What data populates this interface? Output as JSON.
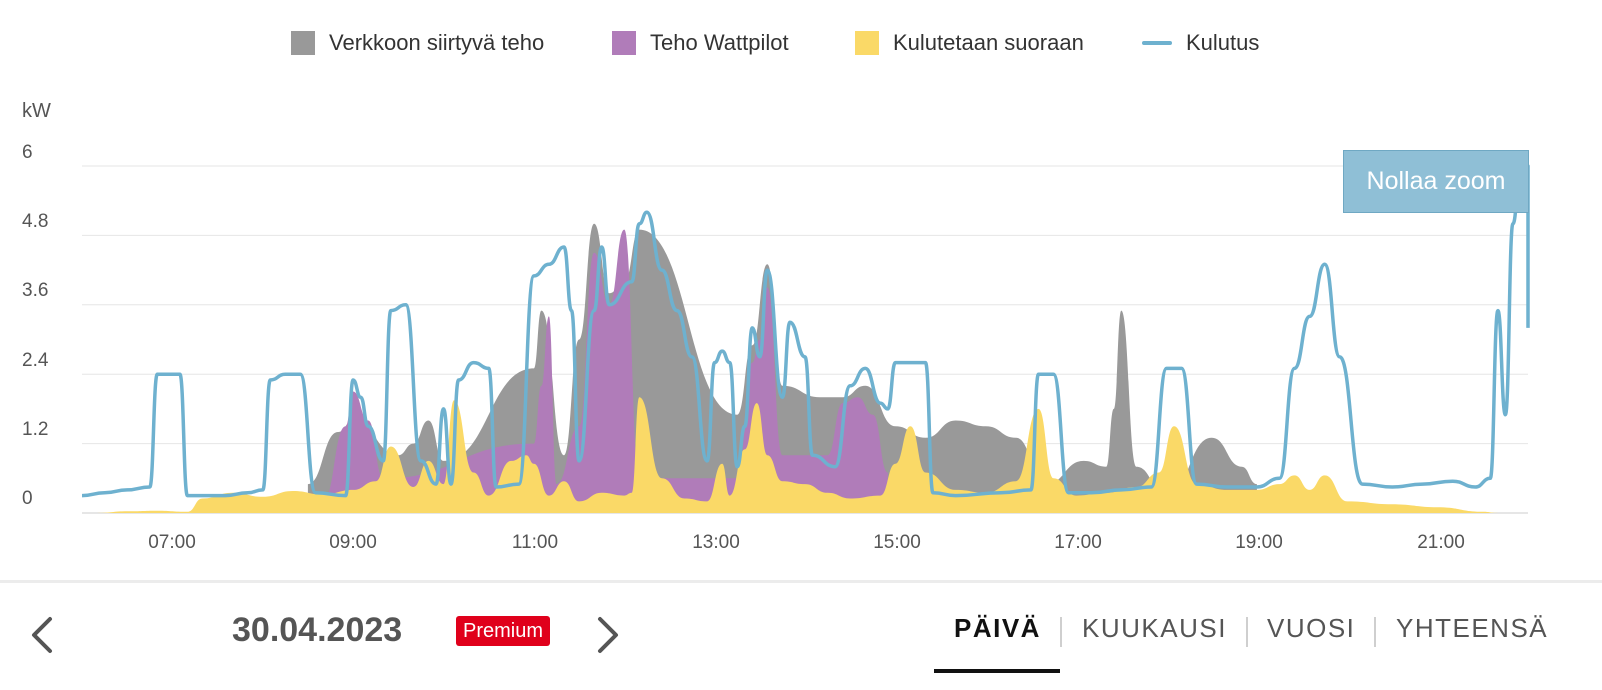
{
  "legend": [
    {
      "label": "Verkkoon siirtyvä teho",
      "color": "#999999",
      "kind": "area"
    },
    {
      "label": "Teho Wattpilot",
      "color": "#b07cb9",
      "kind": "area"
    },
    {
      "label": "Kulutetaan suoraan",
      "color": "#fad967",
      "kind": "area"
    },
    {
      "label": "Kulutus",
      "color": "#6eb1cf",
      "kind": "line"
    }
  ],
  "reset_zoom_label": "Nollaa zoom",
  "date": "30.04.2023",
  "premium_badge": "Premium",
  "tabs": [
    "PÄIVÄ",
    "KUUKAUSI",
    "VUOSI",
    "YHTEENSÄ"
  ],
  "active_tab": "PÄIVÄ",
  "icons": {
    "prev": "chevron-left-icon",
    "next": "chevron-right-icon"
  },
  "chart_data": {
    "type": "area",
    "ylabel": "kW",
    "ylim": [
      0,
      6
    ],
    "yticks": [
      "0",
      "1.2",
      "2.4",
      "3.6",
      "4.8",
      "6"
    ],
    "xlim": [
      "06:00",
      "22:00"
    ],
    "xticks": [
      "07:00",
      "09:00",
      "11:00",
      "13:00",
      "15:00",
      "17:00",
      "19:00",
      "21:00"
    ],
    "grid": true,
    "legend_position": "top",
    "series": [
      {
        "name": "Kulutetaan suoraan",
        "color": "#fad967",
        "points": [
          [
            "06:10",
            0
          ],
          [
            "06:30",
            0.03
          ],
          [
            "06:50",
            0.04
          ],
          [
            "07:10",
            0.02
          ],
          [
            "07:20",
            0.25
          ],
          [
            "07:40",
            0.35
          ],
          [
            "08:00",
            0.28
          ],
          [
            "08:20",
            0.38
          ],
          [
            "08:40",
            0.32
          ],
          [
            "09:00",
            0.4
          ],
          [
            "09:15",
            0.55
          ],
          [
            "09:25",
            1.15
          ],
          [
            "09:40",
            0.45
          ],
          [
            "09:50",
            0.9
          ],
          [
            "10:00",
            0.5
          ],
          [
            "10:07",
            1.95
          ],
          [
            "10:20",
            0.7
          ],
          [
            "10:30",
            0.3
          ],
          [
            "10:45",
            0.9
          ],
          [
            "10:55",
            1.0
          ],
          [
            "11:00",
            0.85
          ],
          [
            "11:10",
            0.3
          ],
          [
            "11:20",
            0.55
          ],
          [
            "11:30",
            0.2
          ],
          [
            "11:45",
            0.35
          ],
          [
            "12:00",
            0.3
          ],
          [
            "12:05",
            0.35
          ],
          [
            "12:10",
            2.0
          ],
          [
            "12:25",
            0.6
          ],
          [
            "12:40",
            0.25
          ],
          [
            "12:55",
            0.2
          ],
          [
            "13:05",
            0.85
          ],
          [
            "13:10",
            0.3
          ],
          [
            "13:20",
            1.1
          ],
          [
            "13:28",
            1.9
          ],
          [
            "13:35",
            1.0
          ],
          [
            "13:45",
            0.55
          ],
          [
            "14:00",
            0.5
          ],
          [
            "14:15",
            0.35
          ],
          [
            "14:30",
            0.25
          ],
          [
            "14:50",
            0.3
          ],
          [
            "15:00",
            0.85
          ],
          [
            "15:10",
            1.5
          ],
          [
            "15:20",
            0.7
          ],
          [
            "15:40",
            0.4
          ],
          [
            "16:00",
            0.35
          ],
          [
            "16:20",
            0.55
          ],
          [
            "16:35",
            1.8
          ],
          [
            "16:45",
            0.6
          ],
          [
            "17:00",
            0.3
          ],
          [
            "17:20",
            0.35
          ],
          [
            "17:40",
            0.45
          ],
          [
            "17:55",
            0.7
          ],
          [
            "18:05",
            1.5
          ],
          [
            "18:20",
            0.5
          ],
          [
            "18:40",
            0.4
          ],
          [
            "19:00",
            0.4
          ],
          [
            "19:15",
            0.5
          ],
          [
            "19:25",
            0.65
          ],
          [
            "19:35",
            0.4
          ],
          [
            "19:45",
            0.65
          ],
          [
            "20:00",
            0.2
          ],
          [
            "20:30",
            0.15
          ],
          [
            "21:00",
            0.1
          ],
          [
            "21:30",
            0.02
          ],
          [
            "21:40",
            0
          ]
        ]
      },
      {
        "name": "Teho Wattpilot",
        "color": "#b07cb9",
        "points": [
          [
            "08:40",
            0.2
          ],
          [
            "08:55",
            1.5
          ],
          [
            "09:00",
            2.1
          ],
          [
            "09:10",
            1.6
          ],
          [
            "09:20",
            0.6
          ],
          [
            "11:00",
            1.2
          ],
          [
            "11:05",
            2.2
          ],
          [
            "11:10",
            3.4
          ],
          [
            "11:15",
            0.5
          ],
          [
            "11:30",
            1.5
          ],
          [
            "11:40",
            4.5
          ],
          [
            "11:50",
            3.6
          ],
          [
            "12:00",
            4.9
          ],
          [
            "12:10",
            0.6
          ],
          [
            "13:15",
            0.6
          ],
          [
            "13:25",
            2.6
          ],
          [
            "13:30",
            3.0
          ],
          [
            "13:35",
            3.9
          ],
          [
            "13:45",
            1.0
          ],
          [
            "14:15",
            1.0
          ],
          [
            "14:25",
            1.9
          ],
          [
            "14:35",
            2.0
          ],
          [
            "14:45",
            1.7
          ],
          [
            "14:55",
            0.7
          ]
        ]
      },
      {
        "name": "Verkkoon siirtyvä teho",
        "color": "#999999",
        "points": [
          [
            "08:30",
            0.5
          ],
          [
            "08:50",
            1.4
          ],
          [
            "09:00",
            1.6
          ],
          [
            "09:30",
            1.0
          ],
          [
            "09:40",
            1.2
          ],
          [
            "09:50",
            1.6
          ],
          [
            "10:00",
            0.9
          ],
          [
            "11:00",
            2.5
          ],
          [
            "11:05",
            3.5
          ],
          [
            "11:20",
            1.0
          ],
          [
            "11:30",
            3.0
          ],
          [
            "11:40",
            5.0
          ],
          [
            "11:50",
            3.8
          ],
          [
            "12:00",
            4.0
          ],
          [
            "12:10",
            4.9
          ],
          [
            "13:15",
            1.7
          ],
          [
            "13:25",
            2.9
          ],
          [
            "13:35",
            4.3
          ],
          [
            "13:45",
            2.2
          ],
          [
            "14:10",
            2.0
          ],
          [
            "14:25",
            2.0
          ],
          [
            "14:40",
            2.2
          ],
          [
            "15:00",
            1.5
          ],
          [
            "15:20",
            1.3
          ],
          [
            "15:40",
            1.6
          ],
          [
            "16:00",
            1.5
          ],
          [
            "16:20",
            1.3
          ],
          [
            "16:40",
            0.5
          ],
          [
            "17:05",
            0.9
          ],
          [
            "17:20",
            0.8
          ],
          [
            "17:25",
            1.8
          ],
          [
            "17:30",
            3.5
          ],
          [
            "17:40",
            0.8
          ],
          [
            "18:00",
            0.3
          ],
          [
            "18:30",
            1.3
          ],
          [
            "18:50",
            0.8
          ],
          [
            "19:00",
            0.5
          ]
        ]
      },
      {
        "name": "Kulutus",
        "color": "#6eb1cf",
        "points": [
          [
            "06:00",
            0.3
          ],
          [
            "06:15",
            0.35
          ],
          [
            "06:30",
            0.4
          ],
          [
            "06:45",
            0.45
          ],
          [
            "06:50",
            2.4
          ],
          [
            "07:05",
            2.4
          ],
          [
            "07:10",
            0.3
          ],
          [
            "07:35",
            0.3
          ],
          [
            "07:50",
            0.35
          ],
          [
            "08:00",
            0.4
          ],
          [
            "08:05",
            2.3
          ],
          [
            "08:15",
            2.4
          ],
          [
            "08:25",
            2.4
          ],
          [
            "08:35",
            0.35
          ],
          [
            "08:55",
            0.3
          ],
          [
            "09:00",
            2.3
          ],
          [
            "09:05",
            2.0
          ],
          [
            "09:10",
            1.5
          ],
          [
            "09:20",
            0.9
          ],
          [
            "09:25",
            3.5
          ],
          [
            "09:35",
            3.6
          ],
          [
            "09:45",
            0.9
          ],
          [
            "09:55",
            0.5
          ],
          [
            "10:00",
            1.8
          ],
          [
            "10:05",
            0.5
          ],
          [
            "10:10",
            2.3
          ],
          [
            "10:20",
            2.6
          ],
          [
            "10:30",
            2.5
          ],
          [
            "10:35",
            0.45
          ],
          [
            "10:50",
            0.5
          ],
          [
            "11:00",
            4.1
          ],
          [
            "11:10",
            4.3
          ],
          [
            "11:20",
            4.6
          ],
          [
            "11:25",
            3.5
          ],
          [
            "11:30",
            0.9
          ],
          [
            "11:40",
            3.5
          ],
          [
            "11:45",
            4.6
          ],
          [
            "11:50",
            3.6
          ],
          [
            "12:05",
            4.0
          ],
          [
            "12:10",
            5.0
          ],
          [
            "12:15",
            5.2
          ],
          [
            "12:25",
            4.2
          ],
          [
            "12:35",
            3.5
          ],
          [
            "12:45",
            2.7
          ],
          [
            "12:55",
            0.9
          ],
          [
            "13:00",
            2.6
          ],
          [
            "13:05",
            2.8
          ],
          [
            "13:10",
            2.6
          ],
          [
            "13:15",
            0.8
          ],
          [
            "13:20",
            1.5
          ],
          [
            "13:25",
            3.2
          ],
          [
            "13:30",
            2.7
          ],
          [
            "13:35",
            4.2
          ],
          [
            "13:45",
            2.0
          ],
          [
            "13:50",
            3.3
          ],
          [
            "14:00",
            2.7
          ],
          [
            "14:05",
            1.0
          ],
          [
            "14:20",
            0.8
          ],
          [
            "14:30",
            2.2
          ],
          [
            "14:40",
            2.5
          ],
          [
            "14:50",
            1.9
          ],
          [
            "14:55",
            1.8
          ],
          [
            "15:00",
            2.6
          ],
          [
            "15:10",
            2.6
          ],
          [
            "15:20",
            2.6
          ],
          [
            "15:25",
            0.35
          ],
          [
            "15:40",
            0.3
          ],
          [
            "16:10",
            0.35
          ],
          [
            "16:30",
            0.4
          ],
          [
            "16:35",
            2.4
          ],
          [
            "16:45",
            2.4
          ],
          [
            "16:55",
            0.35
          ],
          [
            "17:10",
            0.35
          ],
          [
            "17:30",
            0.4
          ],
          [
            "17:50",
            0.45
          ],
          [
            "18:00",
            2.5
          ],
          [
            "18:10",
            2.5
          ],
          [
            "18:20",
            0.5
          ],
          [
            "18:40",
            0.45
          ],
          [
            "19:00",
            0.45
          ],
          [
            "19:15",
            0.6
          ],
          [
            "19:25",
            2.5
          ],
          [
            "19:35",
            3.4
          ],
          [
            "19:45",
            4.3
          ],
          [
            "19:55",
            2.7
          ],
          [
            "20:10",
            0.5
          ],
          [
            "20:30",
            0.45
          ],
          [
            "20:50",
            0.5
          ],
          [
            "21:10",
            0.55
          ],
          [
            "21:25",
            0.45
          ],
          [
            "21:35",
            0.6
          ],
          [
            "21:40",
            3.5
          ],
          [
            "21:45",
            1.7
          ],
          [
            "21:50",
            5.0
          ],
          [
            "21:55",
            6.0
          ],
          [
            "22:00",
            6.0
          ],
          [
            "22:10",
            5.0
          ],
          [
            "22:20",
            3.2
          ],
          [
            "22:25",
            3.2
          ]
        ]
      }
    ]
  }
}
